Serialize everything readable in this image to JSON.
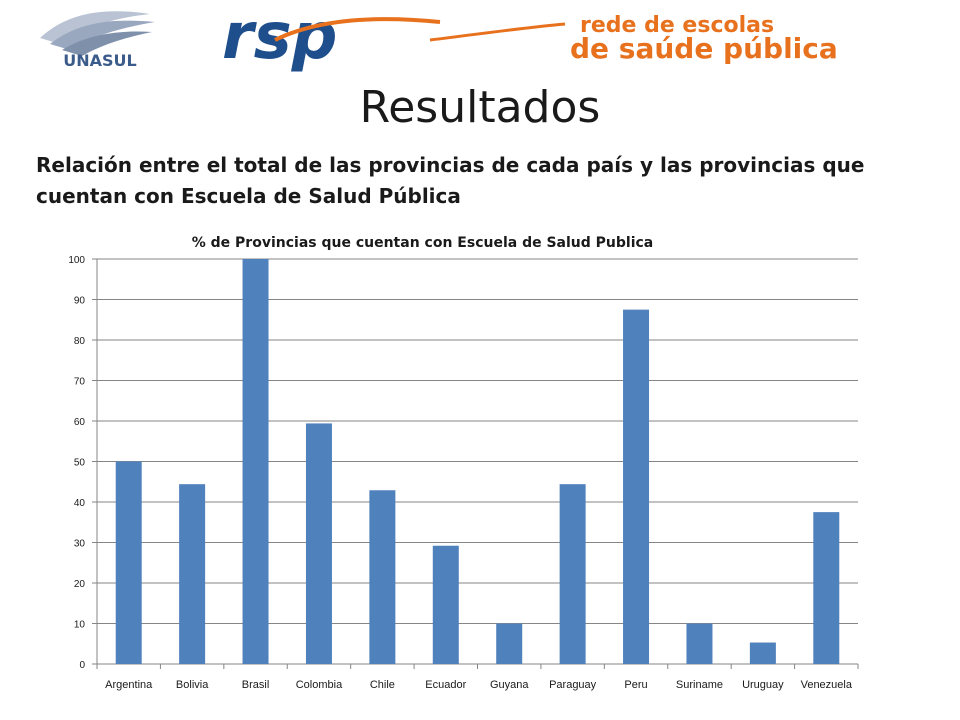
{
  "header": {
    "unasul_logo_text": "UNASUL",
    "rsp_logo_text": "rsp",
    "rsp_line1": "rede de escolas",
    "rsp_line2": "de saúde pública"
  },
  "slide": {
    "title": "Resultados",
    "subtitle": "Relación entre el total de las provincias de cada país y las provincias que cuentan con Escuela de Salud Pública"
  },
  "colors": {
    "bar": "#4f81bd",
    "gridline": "#868686",
    "rsp_blue": "#1f4e8c",
    "rsp_orange": "#e8711e"
  },
  "chart_data": {
    "type": "bar",
    "title": "% de Provincias que cuentan con Escuela de Salud Publica",
    "categories": [
      "Argentina",
      "Bolivia",
      "Brasil",
      "Colombia",
      "Chile",
      "Ecuador",
      "Guyana",
      "Paraguay",
      "Peru",
      "Suriname",
      "Uruguay",
      "Venezuela"
    ],
    "values": [
      50,
      44.4,
      100,
      59.4,
      42.9,
      29.2,
      10,
      44.4,
      87.5,
      10,
      5.3,
      37.5
    ],
    "ylim": [
      0,
      100
    ],
    "yticks": [
      0,
      10,
      20,
      30,
      40,
      50,
      60,
      70,
      80,
      90,
      100
    ],
    "grid": true,
    "legend": "none"
  }
}
